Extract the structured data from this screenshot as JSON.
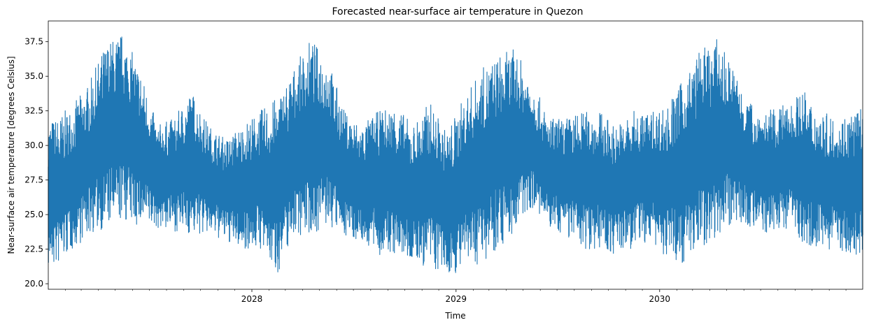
{
  "chart_data": {
    "type": "line",
    "title": "Forecasted near-surface air temperature in Quezon",
    "xlabel": "Time",
    "ylabel": "Near-surface air temperature [degrees Celsius]",
    "xlim": [
      "2027-01-01",
      "2030-12-31"
    ],
    "ylim": [
      19.6,
      39.0
    ],
    "yticks": [
      20.0,
      22.5,
      25.0,
      27.5,
      30.0,
      32.5,
      35.0,
      37.5
    ],
    "ytick_labels": [
      "20.0",
      "22.5",
      "25.0",
      "27.5",
      "30.0",
      "32.5",
      "35.0",
      "37.5"
    ],
    "xticks": [
      "2028-01-01",
      "2029-01-01",
      "2030-01-01"
    ],
    "xtick_labels": [
      "2028",
      "2029",
      "2030"
    ],
    "grid": false,
    "line_color": "#1f77b4",
    "series": [
      {
        "x": [
          "2027-01-15",
          "2027-02-15",
          "2027-03-15",
          "2027-04-15",
          "2027-05-15",
          "2027-06-15",
          "2027-07-15",
          "2027-08-15",
          "2027-09-15",
          "2027-10-15",
          "2027-11-15",
          "2027-12-15",
          "2028-01-15",
          "2028-02-15",
          "2028-03-15",
          "2028-04-15",
          "2028-05-15",
          "2028-06-15",
          "2028-07-15",
          "2028-08-15",
          "2028-09-15",
          "2028-10-15",
          "2028-11-15",
          "2028-12-15",
          "2029-01-15",
          "2029-02-15",
          "2029-03-15",
          "2029-04-15",
          "2029-05-15",
          "2029-06-15",
          "2029-07-15",
          "2029-08-15",
          "2029-09-15",
          "2029-10-15",
          "2029-11-15",
          "2029-12-15",
          "2030-01-15",
          "2030-02-15",
          "2030-03-15",
          "2030-04-15",
          "2030-05-15",
          "2030-06-15",
          "2030-07-15",
          "2030-08-15",
          "2030-09-15",
          "2030-10-15",
          "2030-11-15",
          "2030-12-15"
        ],
        "max": [
          32.0,
          33.0,
          34.5,
          37.5,
          38.2,
          35.5,
          31.5,
          32.0,
          34.0,
          31.5,
          30.5,
          31.5,
          32.5,
          33.5,
          35.5,
          37.7,
          36.5,
          32.5,
          31.5,
          32.5,
          33.0,
          31.5,
          33.2,
          31.0,
          33.5,
          35.5,
          36.5,
          37.0,
          35.0,
          32.0,
          32.0,
          32.5,
          32.5,
          31.5,
          32.5,
          32.5,
          33.0,
          35.0,
          37.0,
          37.7,
          35.5,
          33.0,
          32.5,
          33.0,
          34.0,
          32.5,
          32.0,
          32.7
        ],
        "min": [
          21.1,
          22.5,
          23.5,
          24.0,
          24.5,
          24.0,
          24.0,
          23.8,
          23.5,
          23.5,
          23.0,
          22.5,
          22.5,
          20.6,
          23.5,
          23.5,
          24.0,
          23.5,
          23.0,
          22.0,
          22.0,
          21.5,
          21.0,
          20.5,
          21.0,
          21.5,
          22.5,
          23.5,
          25.5,
          24.0,
          23.5,
          22.5,
          22.5,
          22.0,
          22.5,
          23.0,
          21.7,
          21.5,
          22.5,
          23.5,
          24.5,
          24.0,
          23.5,
          24.0,
          23.0,
          22.5,
          22.5,
          21.8
        ]
      }
    ]
  }
}
